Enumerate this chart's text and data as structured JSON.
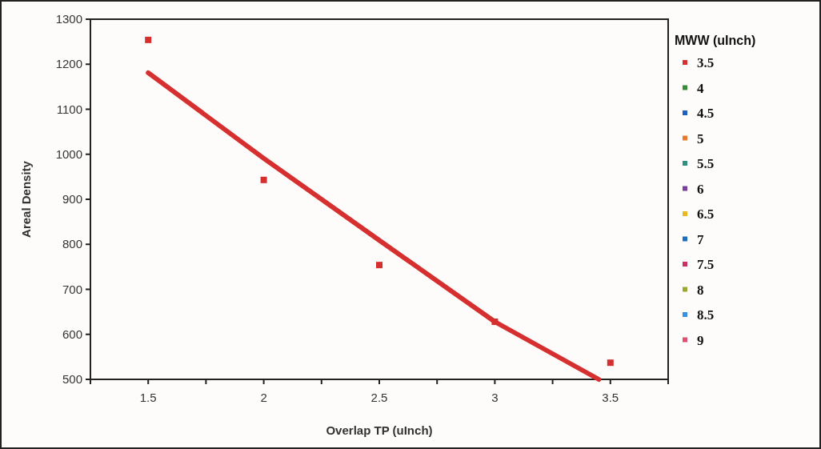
{
  "chart_data": {
    "type": "scatter",
    "xlabel": "Overlap TP (uInch)",
    "ylabel": "Areal Density",
    "legend_title": "MWW (uInch)",
    "legend": "right",
    "marker": "square",
    "grid": false,
    "xlim": [
      1.25,
      3.75
    ],
    "xticks": [
      {
        "value": 1.25,
        "label": null
      },
      1.5,
      {
        "value": 1.75,
        "label": null
      },
      2,
      {
        "value": 2.25,
        "label": null
      },
      2.5,
      {
        "value": 2.75,
        "label": null
      },
      3,
      {
        "value": 3.25,
        "label": null
      },
      3.5,
      {
        "value": 3.75,
        "label": null
      }
    ],
    "ylim": [
      500,
      1300
    ],
    "yticks": [
      500,
      600,
      700,
      800,
      900,
      1000,
      1100,
      1200,
      1300
    ],
    "series": [
      {
        "name": "3.5",
        "color": "#d62f2f",
        "x": [
          1.5,
          2,
          2.5,
          3,
          3.5
        ],
        "values": [
          1254,
          943,
          754,
          628,
          537
        ]
      },
      {
        "name": "4",
        "color": "#3a8a3a"
      },
      {
        "name": "4.5",
        "color": "#1f5fbf"
      },
      {
        "name": "5",
        "color": "#e87a30"
      },
      {
        "name": "5.5",
        "color": "#2f8f80"
      },
      {
        "name": "6",
        "color": "#7a3f9a"
      },
      {
        "name": "6.5",
        "color": "#e8b820"
      },
      {
        "name": "7",
        "color": "#1f6fbf"
      },
      {
        "name": "7.5",
        "color": "#c83060"
      },
      {
        "name": "8",
        "color": "#9aa830"
      },
      {
        "name": "8.5",
        "color": "#3a8fe0"
      },
      {
        "name": "9",
        "color": "#e05070"
      },
      {
        "type": "line",
        "color": "#d62f2f",
        "x": [
          1.5,
          2,
          2.5,
          3,
          3.45
        ],
        "values": [
          1181,
          991,
          809,
          628,
          500
        ],
        "line_style": "solid",
        "marker": "none"
      }
    ]
  }
}
